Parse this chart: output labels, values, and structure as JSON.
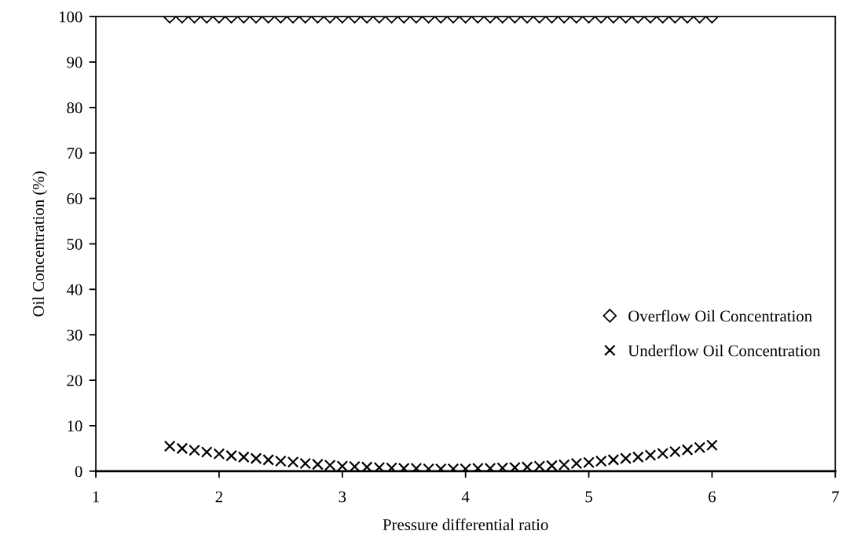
{
  "chart_data": {
    "type": "scatter",
    "xlabel": "Pressure differential ratio",
    "ylabel": "Oil Concentration (%)",
    "x": [
      1.6,
      1.7,
      1.8,
      1.9,
      2.0,
      2.1,
      2.2,
      2.3,
      2.4,
      2.5,
      2.6,
      2.7,
      2.8,
      2.9,
      3.0,
      3.1,
      3.2,
      3.3,
      3.4,
      3.5,
      3.6,
      3.7,
      3.8,
      3.9,
      4.0,
      4.1,
      4.2,
      4.3,
      4.4,
      4.5,
      4.6,
      4.7,
      4.8,
      4.9,
      5.0,
      5.1,
      5.2,
      5.3,
      5.4,
      5.5,
      5.6,
      5.7,
      5.8,
      5.9,
      6.0
    ],
    "series": [
      {
        "name": "Overflow Oil Concentration",
        "color": "#000000",
        "marker": "diamond",
        "values": [
          100,
          100,
          100,
          100,
          100,
          100,
          100,
          100,
          100,
          100,
          100,
          100,
          100,
          100,
          100,
          100,
          100,
          100,
          100,
          100,
          100,
          100,
          100,
          100,
          100,
          100,
          100,
          100,
          100,
          100,
          100,
          100,
          100,
          100,
          100,
          100,
          100,
          100,
          100,
          100,
          100,
          100,
          100,
          100,
          100
        ]
      },
      {
        "name": "Underflow Oil Concentration",
        "color": "#000000",
        "marker": "cross",
        "values": [
          5.5,
          5.0,
          4.6,
          4.2,
          3.8,
          3.4,
          3.1,
          2.8,
          2.5,
          2.2,
          2.0,
          1.7,
          1.5,
          1.3,
          1.1,
          1.0,
          0.9,
          0.8,
          0.7,
          0.6,
          0.6,
          0.5,
          0.5,
          0.5,
          0.5,
          0.6,
          0.6,
          0.7,
          0.8,
          0.9,
          1.1,
          1.2,
          1.4,
          1.7,
          1.9,
          2.2,
          2.5,
          2.8,
          3.1,
          3.5,
          3.9,
          4.3,
          4.7,
          5.2,
          5.7
        ]
      }
    ],
    "xlim": [
      1,
      7
    ],
    "xticks": [
      1,
      2,
      3,
      4,
      5,
      6,
      7
    ],
    "ylim": [
      0,
      100
    ],
    "yticks": [
      0,
      10,
      20,
      30,
      40,
      50,
      60,
      70,
      80,
      90,
      100
    ],
    "grid": false,
    "legend": "right"
  }
}
